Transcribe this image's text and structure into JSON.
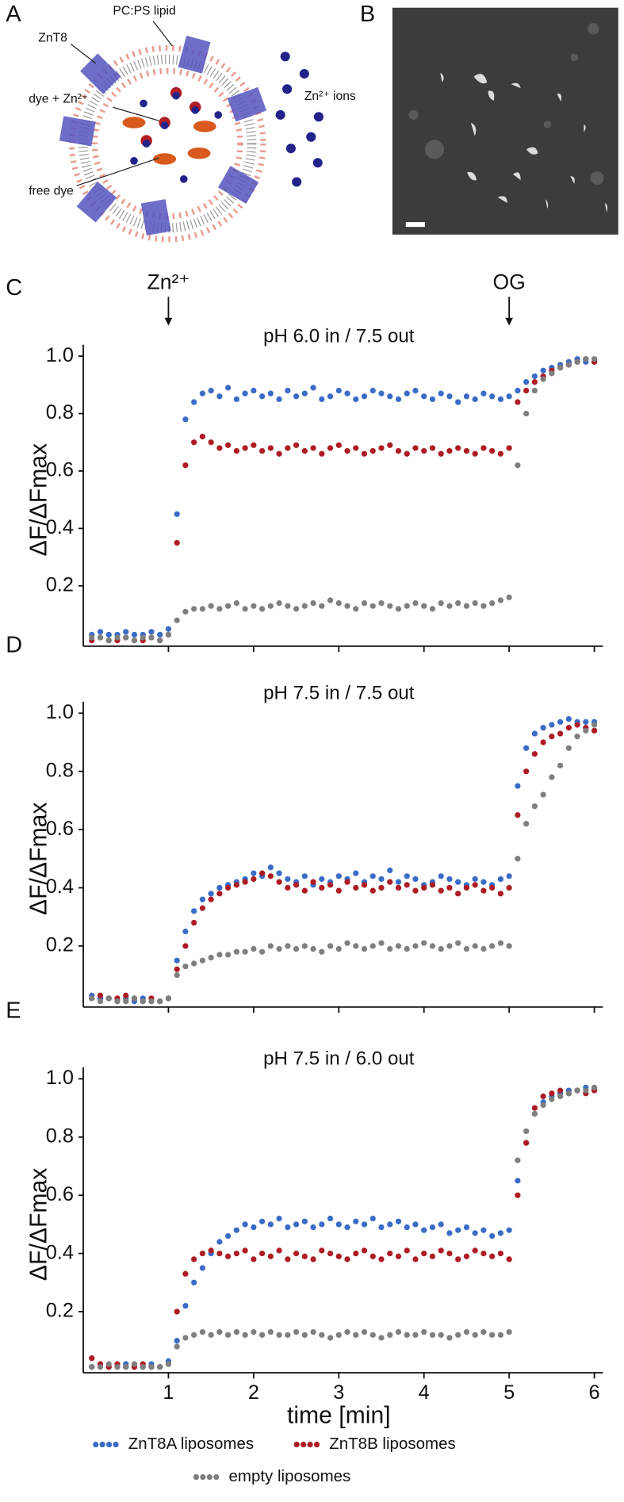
{
  "panels": {
    "a": "A",
    "b": "B"
  },
  "diagram": {
    "lipid": "PC:PS lipid",
    "transporter": "ZnT8",
    "dye_zn": "dye + Zn²⁺",
    "free_dye": "free dye",
    "ions": "Zn²⁺ ions"
  },
  "chart_data": [
    {
      "type": "scatter",
      "panel": "C",
      "title": "pH 6.0 in / 7.5 out",
      "y_label": "ΔF/ΔFmax",
      "annotations": [
        {
          "text": "Zn²⁺",
          "x": 1
        },
        {
          "text": "OG",
          "x": 5
        }
      ],
      "xlim": [
        0,
        6
      ],
      "ylim": [
        0,
        1
      ],
      "xticks": [
        1,
        2,
        3,
        4,
        5,
        6
      ],
      "xtick_labels": false,
      "yticks": [
        0.2,
        0.4,
        0.6,
        0.8,
        {
          "value": 1,
          "label": "1.0"
        }
      ],
      "x": [
        0.1,
        0.2,
        0.3,
        0.4,
        0.5,
        0.6,
        0.7,
        0.8,
        0.9,
        1.0,
        1.1,
        1.2,
        1.3,
        1.4,
        1.5,
        1.6,
        1.7,
        1.8,
        1.9,
        2.0,
        2.1,
        2.2,
        2.3,
        2.4,
        2.5,
        2.6,
        2.7,
        2.8,
        2.9,
        3.0,
        3.1,
        3.2,
        3.3,
        3.4,
        3.5,
        3.6,
        3.7,
        3.8,
        3.9,
        4.0,
        4.1,
        4.2,
        4.3,
        4.4,
        4.5,
        4.6,
        4.7,
        4.8,
        4.9,
        5.0,
        5.1,
        5.2,
        5.3,
        5.4,
        5.5,
        5.6,
        5.7,
        5.8,
        5.9,
        6.0
      ],
      "series": [
        {
          "color": "#3a6cc6",
          "values": [
            0.03,
            0.04,
            0.03,
            0.03,
            0.04,
            0.03,
            0.03,
            0.04,
            0.03,
            0.05,
            0.45,
            0.78,
            0.84,
            0.87,
            0.88,
            0.86,
            0.89,
            0.85,
            0.87,
            0.88,
            0.86,
            0.87,
            0.85,
            0.88,
            0.86,
            0.87,
            0.89,
            0.85,
            0.86,
            0.88,
            0.87,
            0.85,
            0.86,
            0.88,
            0.87,
            0.86,
            0.85,
            0.87,
            0.88,
            0.86,
            0.85,
            0.87,
            0.86,
            0.84,
            0.86,
            0.85,
            0.87,
            0.86,
            0.85,
            0.86,
            0.88,
            0.91,
            0.93,
            0.95,
            0.96,
            0.97,
            0.98,
            0.99,
            0.98,
            0.98
          ]
        },
        {
          "color": "#ad1c24",
          "values": [
            0.01,
            0.02,
            0.01,
            0.01,
            0.02,
            0.01,
            0.01,
            0.02,
            0.01,
            0.03,
            0.35,
            0.62,
            0.7,
            0.72,
            0.7,
            0.68,
            0.69,
            0.67,
            0.68,
            0.69,
            0.67,
            0.68,
            0.66,
            0.68,
            0.69,
            0.67,
            0.68,
            0.66,
            0.68,
            0.69,
            0.67,
            0.68,
            0.66,
            0.67,
            0.68,
            0.69,
            0.67,
            0.66,
            0.68,
            0.67,
            0.68,
            0.66,
            0.67,
            0.68,
            0.67,
            0.66,
            0.68,
            0.67,
            0.66,
            0.68,
            0.84,
            0.88,
            0.91,
            0.93,
            0.95,
            0.96,
            0.97,
            0.98,
            0.99,
            0.98
          ]
        },
        {
          "color": "#7f7f7f",
          "values": [
            0.02,
            0.02,
            0.01,
            0.02,
            0.02,
            0.01,
            0.02,
            0.02,
            0.01,
            0.03,
            0.08,
            0.11,
            0.12,
            0.12,
            0.13,
            0.12,
            0.13,
            0.14,
            0.12,
            0.13,
            0.12,
            0.13,
            0.14,
            0.13,
            0.12,
            0.13,
            0.14,
            0.13,
            0.15,
            0.14,
            0.13,
            0.12,
            0.14,
            0.13,
            0.14,
            0.13,
            0.12,
            0.13,
            0.14,
            0.13,
            0.12,
            0.14,
            0.13,
            0.14,
            0.13,
            0.14,
            0.13,
            0.14,
            0.15,
            0.16,
            0.62,
            0.8,
            0.88,
            0.92,
            0.94,
            0.96,
            0.97,
            0.98,
            0.99,
            0.99
          ]
        }
      ]
    },
    {
      "type": "scatter",
      "panel": "D",
      "title": "pH 7.5 in / 7.5 out",
      "y_label": "ΔF/ΔFmax",
      "xlim": [
        0,
        6
      ],
      "ylim": [
        0,
        1
      ],
      "xticks": [
        1,
        2,
        3,
        4,
        5,
        6
      ],
      "xtick_labels": false,
      "yticks": [
        0.2,
        0.4,
        0.6,
        0.8,
        {
          "value": 1,
          "label": "1.0"
        }
      ],
      "x": [
        0.1,
        0.2,
        0.3,
        0.4,
        0.5,
        0.6,
        0.7,
        0.8,
        0.9,
        1.0,
        1.1,
        1.2,
        1.3,
        1.4,
        1.5,
        1.6,
        1.7,
        1.8,
        1.9,
        2.0,
        2.1,
        2.2,
        2.3,
        2.4,
        2.5,
        2.6,
        2.7,
        2.8,
        2.9,
        3.0,
        3.1,
        3.2,
        3.3,
        3.4,
        3.5,
        3.6,
        3.7,
        3.8,
        3.9,
        4.0,
        4.1,
        4.2,
        4.3,
        4.4,
        4.5,
        4.6,
        4.7,
        4.8,
        4.9,
        5.0,
        5.1,
        5.2,
        5.3,
        5.4,
        5.5,
        5.6,
        5.7,
        5.8,
        5.9,
        6.0
      ],
      "series": [
        {
          "color": "#3a6cc6",
          "values": [
            0.03,
            0.02,
            0.02,
            0.01,
            0.02,
            0.01,
            0.02,
            0.01,
            0.01,
            0.02,
            0.15,
            0.25,
            0.32,
            0.36,
            0.38,
            0.4,
            0.41,
            0.42,
            0.43,
            0.45,
            0.44,
            0.47,
            0.45,
            0.43,
            0.42,
            0.44,
            0.41,
            0.43,
            0.42,
            0.44,
            0.43,
            0.45,
            0.42,
            0.44,
            0.43,
            0.46,
            0.42,
            0.44,
            0.43,
            0.41,
            0.42,
            0.44,
            0.43,
            0.42,
            0.41,
            0.43,
            0.42,
            0.41,
            0.43,
            0.44,
            0.75,
            0.88,
            0.93,
            0.95,
            0.96,
            0.97,
            0.98,
            0.97,
            0.97,
            0.97
          ]
        },
        {
          "color": "#ad1c24",
          "values": [
            0.02,
            0.03,
            0.02,
            0.02,
            0.03,
            0.02,
            0.01,
            0.02,
            0.01,
            0.02,
            0.12,
            0.2,
            0.28,
            0.33,
            0.36,
            0.38,
            0.4,
            0.41,
            0.42,
            0.43,
            0.45,
            0.44,
            0.42,
            0.4,
            0.41,
            0.39,
            0.42,
            0.4,
            0.41,
            0.39,
            0.42,
            0.4,
            0.41,
            0.39,
            0.4,
            0.42,
            0.4,
            0.41,
            0.39,
            0.4,
            0.41,
            0.39,
            0.4,
            0.38,
            0.4,
            0.41,
            0.39,
            0.4,
            0.38,
            0.4,
            0.65,
            0.8,
            0.86,
            0.9,
            0.92,
            0.93,
            0.95,
            0.96,
            0.95,
            0.94
          ]
        },
        {
          "color": "#7f7f7f",
          "values": [
            0.02,
            0.01,
            0.02,
            0.01,
            0.01,
            0.02,
            0.01,
            0.01,
            0.01,
            0.02,
            0.1,
            0.13,
            0.14,
            0.15,
            0.16,
            0.17,
            0.17,
            0.18,
            0.18,
            0.19,
            0.18,
            0.2,
            0.19,
            0.2,
            0.19,
            0.2,
            0.19,
            0.18,
            0.2,
            0.19,
            0.21,
            0.2,
            0.19,
            0.2,
            0.21,
            0.19,
            0.2,
            0.19,
            0.2,
            0.21,
            0.2,
            0.19,
            0.2,
            0.21,
            0.19,
            0.2,
            0.19,
            0.2,
            0.21,
            0.2,
            0.5,
            0.62,
            0.68,
            0.72,
            0.78,
            0.82,
            0.88,
            0.92,
            0.94,
            0.96
          ]
        }
      ]
    },
    {
      "type": "scatter",
      "panel": "E",
      "title": "pH 7.5 in / 6.0 out",
      "y_label": "ΔF/ΔFmax",
      "x_label": "time [min]",
      "xlim": [
        0,
        6
      ],
      "ylim": [
        0,
        1
      ],
      "xticks": [
        1,
        2,
        3,
        4,
        5,
        6
      ],
      "xtick_labels": true,
      "yticks": [
        0.2,
        0.4,
        0.6,
        0.8,
        {
          "value": 1,
          "label": "1.0"
        }
      ],
      "x": [
        0.1,
        0.2,
        0.3,
        0.4,
        0.5,
        0.6,
        0.7,
        0.8,
        0.9,
        1.0,
        1.1,
        1.2,
        1.3,
        1.4,
        1.5,
        1.6,
        1.7,
        1.8,
        1.9,
        2.0,
        2.1,
        2.2,
        2.3,
        2.4,
        2.5,
        2.6,
        2.7,
        2.8,
        2.9,
        3.0,
        3.1,
        3.2,
        3.3,
        3.4,
        3.5,
        3.6,
        3.7,
        3.8,
        3.9,
        4.0,
        4.1,
        4.2,
        4.3,
        4.4,
        4.5,
        4.6,
        4.7,
        4.8,
        4.9,
        5.0,
        5.1,
        5.2,
        5.3,
        5.4,
        5.5,
        5.6,
        5.7,
        5.8,
        5.9,
        6.0
      ],
      "series": [
        {
          "name": "ZnT8A liposomes",
          "color": "#3a6cc6",
          "values": [
            0.01,
            0.02,
            0.01,
            0.01,
            0.02,
            0.01,
            0.01,
            0.02,
            0.01,
            0.03,
            0.1,
            0.22,
            0.3,
            0.35,
            0.4,
            0.44,
            0.46,
            0.48,
            0.5,
            0.49,
            0.51,
            0.5,
            0.52,
            0.49,
            0.5,
            0.51,
            0.49,
            0.5,
            0.52,
            0.5,
            0.49,
            0.51,
            0.5,
            0.52,
            0.49,
            0.5,
            0.51,
            0.49,
            0.5,
            0.48,
            0.49,
            0.5,
            0.47,
            0.48,
            0.49,
            0.47,
            0.48,
            0.46,
            0.47,
            0.48,
            0.65,
            0.78,
            0.88,
            0.92,
            0.94,
            0.95,
            0.96,
            0.96,
            0.97,
            0.97
          ]
        },
        {
          "name": "ZnT8B liposomes",
          "color": "#ad1c24",
          "values": [
            0.04,
            0.02,
            0.01,
            0.02,
            0.01,
            0.01,
            0.02,
            0.01,
            0.01,
            0.02,
            0.2,
            0.33,
            0.38,
            0.4,
            0.41,
            0.4,
            0.39,
            0.4,
            0.41,
            0.38,
            0.4,
            0.39,
            0.41,
            0.38,
            0.4,
            0.39,
            0.38,
            0.41,
            0.4,
            0.39,
            0.38,
            0.4,
            0.41,
            0.39,
            0.38,
            0.4,
            0.39,
            0.41,
            0.38,
            0.4,
            0.39,
            0.41,
            0.4,
            0.38,
            0.39,
            0.41,
            0.4,
            0.39,
            0.4,
            0.38,
            0.6,
            0.78,
            0.9,
            0.94,
            0.95,
            0.96,
            0.95,
            0.96,
            0.95,
            0.96
          ]
        },
        {
          "name": "empty liposomes",
          "color": "#7f7f7f",
          "values": [
            0.01,
            0.01,
            0.02,
            0.01,
            0.01,
            0.02,
            0.01,
            0.01,
            0.01,
            0.02,
            0.08,
            0.11,
            0.12,
            0.13,
            0.12,
            0.13,
            0.12,
            0.13,
            0.12,
            0.13,
            0.12,
            0.13,
            0.12,
            0.12,
            0.13,
            0.12,
            0.13,
            0.12,
            0.11,
            0.12,
            0.13,
            0.12,
            0.13,
            0.12,
            0.11,
            0.12,
            0.13,
            0.12,
            0.12,
            0.13,
            0.12,
            0.12,
            0.11,
            0.12,
            0.13,
            0.12,
            0.13,
            0.12,
            0.12,
            0.13,
            0.72,
            0.82,
            0.88,
            0.91,
            0.93,
            0.94,
            0.95,
            0.96,
            0.96,
            0.97
          ]
        }
      ]
    }
  ]
}
